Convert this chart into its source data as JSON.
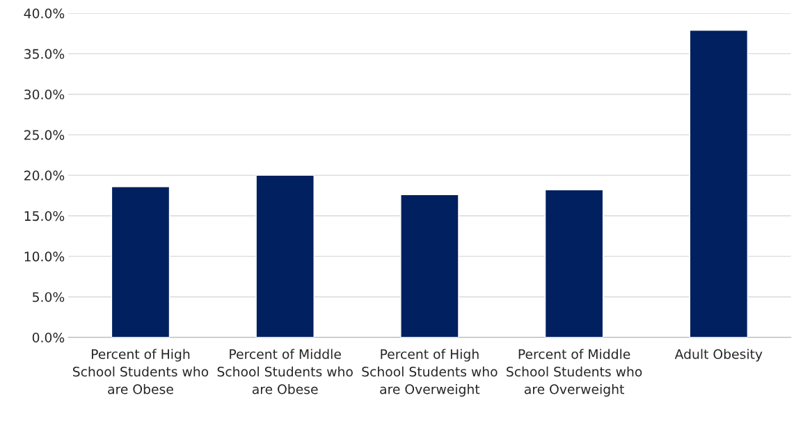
{
  "chart_data": {
    "type": "bar",
    "categories": [
      "Percent of High School Students who are Obese",
      "Percent of Middle School Students who are Obese",
      "Percent of High School Students who are Overweight",
      "Percent of Middle School Students who are Overweight",
      "Adult Obesity"
    ],
    "values": [
      18.6,
      20.0,
      17.6,
      18.2,
      37.9
    ],
    "color": "#002060",
    "ylim": [
      0,
      40
    ],
    "yticks": [
      {
        "value": 0,
        "label": "0.0%"
      },
      {
        "value": 5,
        "label": "5.0%"
      },
      {
        "value": 10,
        "label": "10.0%"
      },
      {
        "value": 15,
        "label": "15.0%"
      },
      {
        "value": 20,
        "label": "20.0%"
      },
      {
        "value": 25,
        "label": "25.0%"
      },
      {
        "value": 30,
        "label": "30.0%"
      },
      {
        "value": 35,
        "label": "35.0%"
      },
      {
        "value": 40,
        "label": "40.0%"
      }
    ],
    "grid": "y"
  }
}
